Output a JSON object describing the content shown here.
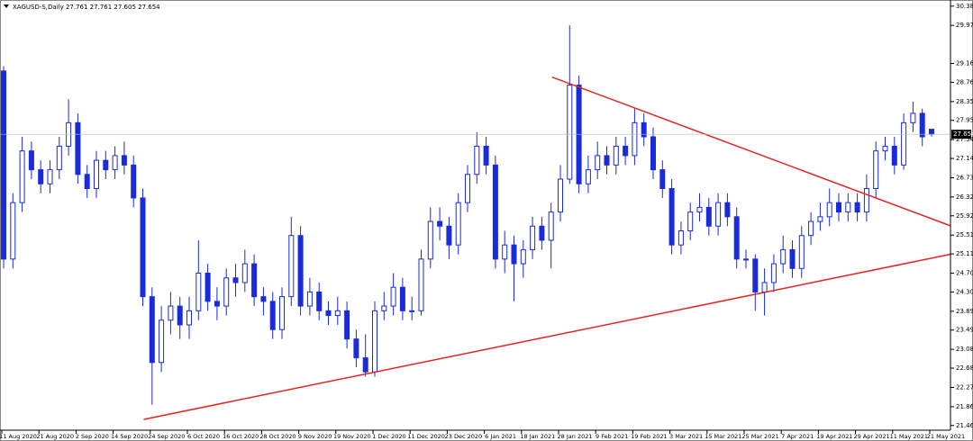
{
  "chart_data": {
    "type": "candlestick",
    "title": "XAGUSD-S,Daily  27.761 27.761 27.605 27.654",
    "bull_color": "#1a2bdc",
    "bear_color": "#1a2bdc",
    "open": [
      29.0,
      25.0,
      26.2,
      27.3,
      26.9,
      26.6,
      26.9,
      27.4,
      27.9,
      26.8,
      26.5,
      27.1,
      26.9,
      27.2,
      27.0,
      26.3,
      24.2,
      22.8,
      23.7,
      24.0,
      23.6,
      23.9,
      24.7,
      24.1,
      24.0,
      24.6,
      24.5,
      24.9,
      24.2,
      24.1,
      23.5,
      24.2,
      25.5,
      24.0,
      24.3,
      23.9,
      23.8,
      23.9,
      23.3,
      22.9,
      22.6,
      23.9,
      24.0,
      24.4,
      23.9,
      23.9,
      25.0,
      25.8,
      25.7,
      25.3,
      26.2,
      26.8,
      27.4,
      27.0,
      25.0,
      25.3,
      24.9,
      25.2,
      25.7,
      25.4,
      26.0,
      26.7,
      28.7,
      26.6,
      26.9,
      27.2,
      27.0,
      27.4,
      27.2,
      27.9,
      27.6,
      26.9,
      26.5,
      25.3,
      25.6,
      26.0,
      26.1,
      25.7,
      26.2,
      25.9,
      25.0,
      25.0,
      24.3,
      24.5,
      24.9,
      25.2,
      24.8,
      25.5,
      25.8,
      25.9,
      26.2,
      26.0,
      26.2,
      26.0,
      26.5,
      27.3,
      27.4,
      27.0,
      27.9,
      28.1,
      27.761
    ],
    "high": [
      29.1,
      26.4,
      27.6,
      27.5,
      27.1,
      27.1,
      27.6,
      28.4,
      28.1,
      27.0,
      27.3,
      27.3,
      27.4,
      27.5,
      27.2,
      26.5,
      24.4,
      24.0,
      24.3,
      24.2,
      24.2,
      25.4,
      24.9,
      24.4,
      24.8,
      24.9,
      25.2,
      25.1,
      24.4,
      24.3,
      24.4,
      25.9,
      25.7,
      24.6,
      24.5,
      24.1,
      24.2,
      24.1,
      23.5,
      23.4,
      24.1,
      24.3,
      24.7,
      24.6,
      24.2,
      25.2,
      26.1,
      26.1,
      25.9,
      26.4,
      27.0,
      27.7,
      27.6,
      27.2,
      25.6,
      25.5,
      25.4,
      25.9,
      25.9,
      26.2,
      27.0,
      29.97,
      28.9,
      27.2,
      27.5,
      27.4,
      27.6,
      27.6,
      28.2,
      28.1,
      27.8,
      27.1,
      26.7,
      25.8,
      26.2,
      26.4,
      26.3,
      26.4,
      26.4,
      26.1,
      25.2,
      25.1,
      24.8,
      25.1,
      25.5,
      25.4,
      25.7,
      26.0,
      26.2,
      26.5,
      26.4,
      26.4,
      26.4,
      26.8,
      27.5,
      27.6,
      27.6,
      28.1,
      28.35,
      28.2,
      27.761
    ],
    "low": [
      24.8,
      24.8,
      26.0,
      26.7,
      26.4,
      26.4,
      26.7,
      27.2,
      26.6,
      26.3,
      26.3,
      26.7,
      26.7,
      26.8,
      26.1,
      24.0,
      21.9,
      22.6,
      23.4,
      23.3,
      23.3,
      23.7,
      23.9,
      23.7,
      23.8,
      24.2,
      24.3,
      24.0,
      23.8,
      23.3,
      23.3,
      24.0,
      23.8,
      23.8,
      23.7,
      23.6,
      23.6,
      23.1,
      22.7,
      22.5,
      22.5,
      23.7,
      23.8,
      23.7,
      23.7,
      23.8,
      24.8,
      25.4,
      25.0,
      25.1,
      26.0,
      26.6,
      26.8,
      24.8,
      24.7,
      24.1,
      24.6,
      25.0,
      25.2,
      24.8,
      25.8,
      26.6,
      26.4,
      26.4,
      26.7,
      26.8,
      26.8,
      27.0,
      27.0,
      27.4,
      26.7,
      26.3,
      25.1,
      25.1,
      25.4,
      25.8,
      25.5,
      25.5,
      25.7,
      24.8,
      24.8,
      23.9,
      23.8,
      24.3,
      24.7,
      24.6,
      24.6,
      25.3,
      25.6,
      25.7,
      25.8,
      25.8,
      25.8,
      25.8,
      26.3,
      27.1,
      26.8,
      26.9,
      27.7,
      27.4,
      27.605
    ],
    "close": [
      25.0,
      26.2,
      27.3,
      26.9,
      26.6,
      26.9,
      27.4,
      27.9,
      26.8,
      26.5,
      27.1,
      26.9,
      27.2,
      27.0,
      26.3,
      24.2,
      22.8,
      23.7,
      24.0,
      23.6,
      23.9,
      24.7,
      24.1,
      24.0,
      24.6,
      24.5,
      24.9,
      24.2,
      24.1,
      23.5,
      24.2,
      25.5,
      24.0,
      24.3,
      23.9,
      23.8,
      23.9,
      23.3,
      22.9,
      22.6,
      23.9,
      24.0,
      24.4,
      23.9,
      23.9,
      25.0,
      25.8,
      25.7,
      25.3,
      26.2,
      26.8,
      27.4,
      27.0,
      25.0,
      25.3,
      24.9,
      25.2,
      25.7,
      25.4,
      26.0,
      26.7,
      28.7,
      26.6,
      26.9,
      27.2,
      27.0,
      27.4,
      27.2,
      27.9,
      27.6,
      26.9,
      26.5,
      25.3,
      25.6,
      26.0,
      26.1,
      25.7,
      26.2,
      25.9,
      25.0,
      25.0,
      24.3,
      24.5,
      24.9,
      25.2,
      24.8,
      25.5,
      25.8,
      25.9,
      26.2,
      26.0,
      26.2,
      26.0,
      26.5,
      27.3,
      27.4,
      27.0,
      27.9,
      28.1,
      27.6,
      27.654
    ],
    "x_tick_labels": [
      "11 Aug 2020",
      "21 Aug 2020",
      "2 Sep 2020",
      "14 Sep 2020",
      "24 Sep 2020",
      "6 Oct 2020",
      "16 Oct 2020",
      "28 Oct 2020",
      "9 Nov 2020",
      "19 Nov 2020",
      "1 Dec 2020",
      "11 Dec 2020",
      "23 Dec 2020",
      "6 Jan 2021",
      "18 Jan 2021",
      "28 Jan 2021",
      "9 Feb 2021",
      "19 Feb 2021",
      "3 Mar 2021",
      "15 Mar 2021",
      "25 Mar 2021",
      "7 Apr 2021",
      "19 Apr 2021",
      "29 Apr 2021",
      "11 May 2021",
      "21 May 2021"
    ],
    "ylim": [
      21.36,
      30.51
    ],
    "yticks": [
      {
        "value": 30.38,
        "label": "30.380"
      },
      {
        "value": 29.97,
        "label": "29.970"
      },
      {
        "value": 29.16,
        "label": "29.160"
      },
      {
        "value": 28.76,
        "label": "28.760"
      },
      {
        "value": 28.35,
        "label": "28.350"
      },
      {
        "value": 27.95,
        "label": "27.950"
      },
      {
        "value": 27.54,
        "label": "27.540"
      },
      {
        "value": 27.14,
        "label": "27.140"
      },
      {
        "value": 26.73,
        "label": "26.730"
      },
      {
        "value": 26.32,
        "label": "26.320"
      },
      {
        "value": 25.92,
        "label": "25.920"
      },
      {
        "value": 25.51,
        "label": "25.510"
      },
      {
        "value": 25.11,
        "label": "25.110"
      },
      {
        "value": 24.7,
        "label": "24.700"
      },
      {
        "value": 24.3,
        "label": "24.300"
      },
      {
        "value": 23.89,
        "label": "23.890"
      },
      {
        "value": 23.49,
        "label": "23.490"
      },
      {
        "value": 23.08,
        "label": "23.080"
      },
      {
        "value": 22.68,
        "label": "22.680"
      },
      {
        "value": 22.27,
        "label": "22.270"
      },
      {
        "value": 21.86,
        "label": "21.860"
      },
      {
        "value": 21.46,
        "label": "21.460"
      }
    ],
    "price_line": {
      "value": 27.654,
      "label": "27.654"
    },
    "trendline_color": "#e8231f",
    "trendlines": [
      {
        "x": [
          59.1,
          102
        ],
        "y": [
          28.87,
          25.71
        ]
      },
      {
        "x": [
          15.1,
          102
        ],
        "y": [
          21.59,
          25.1
        ]
      }
    ]
  }
}
